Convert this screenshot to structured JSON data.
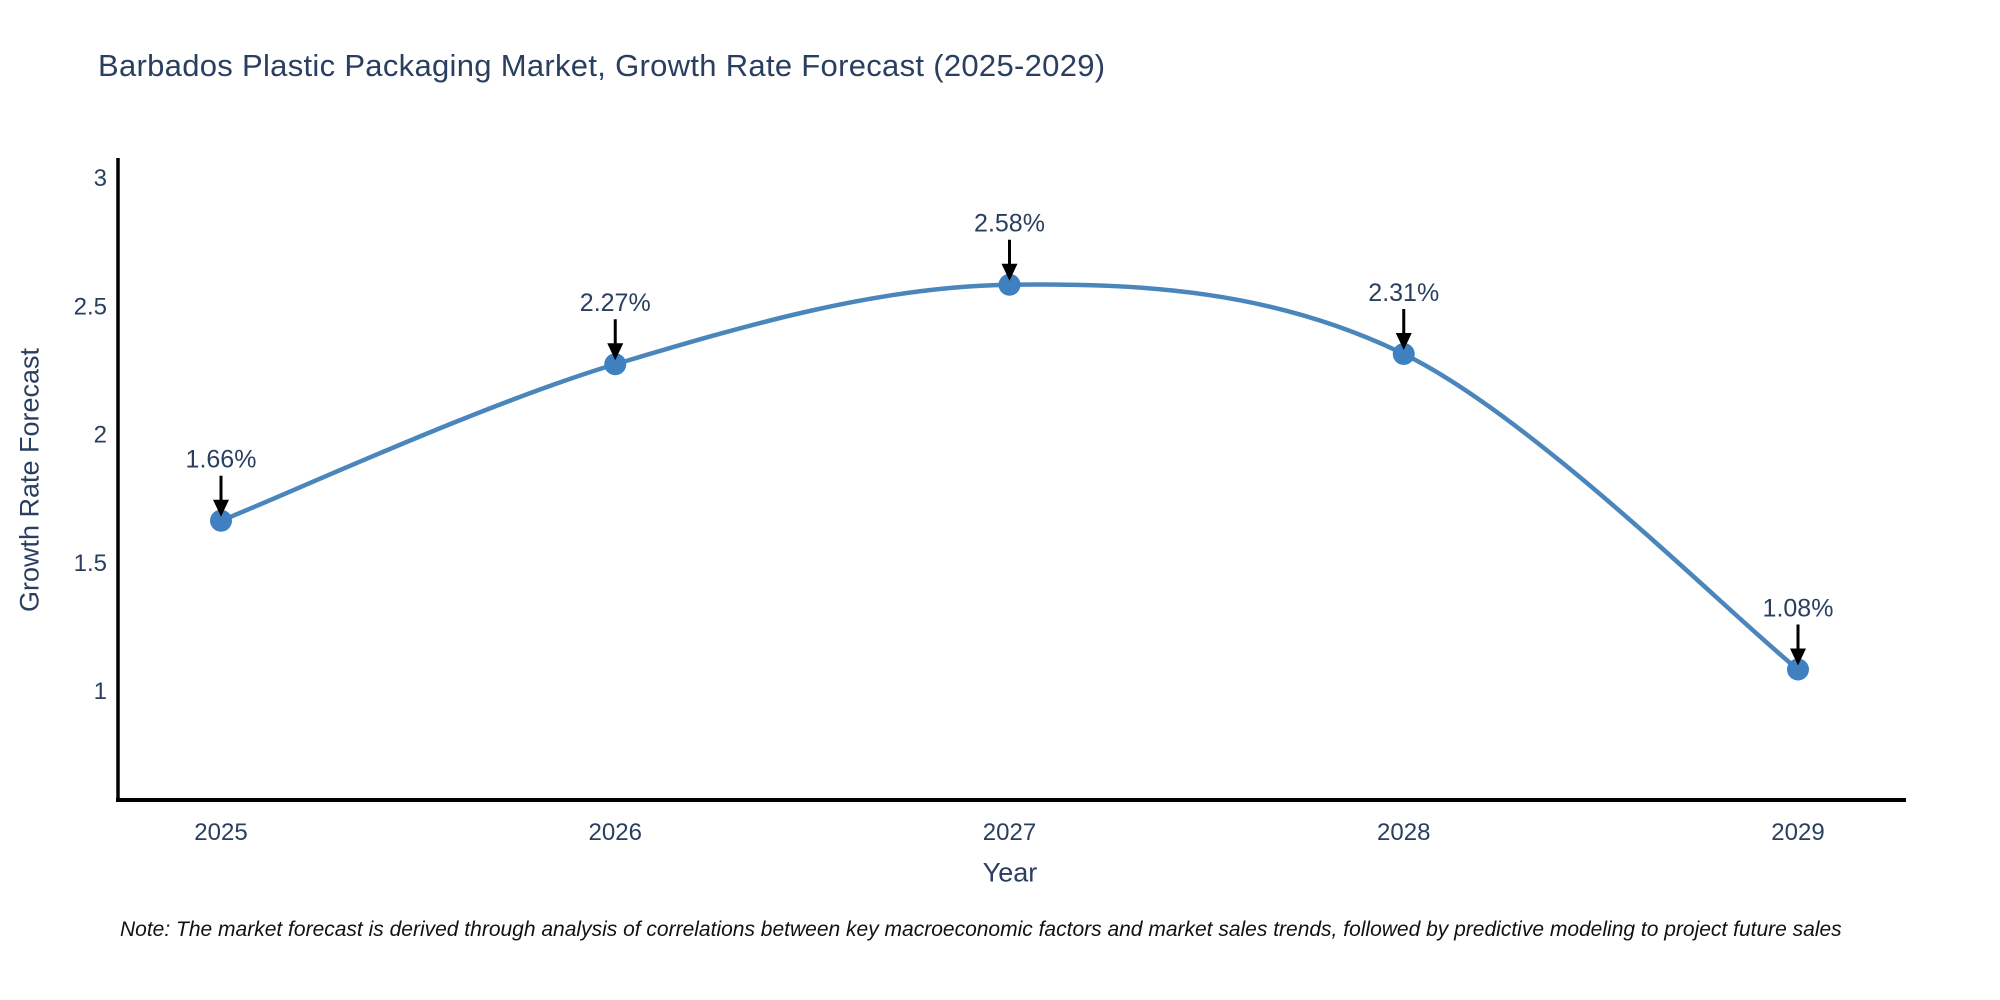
{
  "title": "Barbados Plastic Packaging Market, Growth Rate Forecast (2025-2029)",
  "footnote": "Note: The market forecast is derived through analysis of correlations between key macroeconomic factors and market sales trends, followed by predictive modeling to project future sales",
  "chart_data": {
    "type": "line",
    "line_shape": "spline",
    "categories": [
      "2025",
      "2026",
      "2027",
      "2028",
      "2029"
    ],
    "values": [
      1.66,
      2.27,
      2.58,
      2.31,
      1.08
    ],
    "point_labels": [
      "1.66%",
      "2.27%",
      "2.58%",
      "2.31%",
      "1.08%"
    ],
    "title": "Barbados Plastic Packaging Market, Growth Rate Forecast (2025-2029)",
    "xlabel": "Year",
    "ylabel": "Growth Rate Forecast",
    "yticks": [
      3,
      2.5,
      2,
      1.5,
      1
    ],
    "ytick_labels": [
      "3",
      "2.5",
      "2",
      "1.5",
      "1"
    ],
    "ylim": [
      0.57,
      3.07
    ],
    "grid": false,
    "legend": false,
    "colors": {
      "line": "#4a86bc",
      "marker": "#3f80c1",
      "axis": "#000000",
      "annotation_arrow": "#000000",
      "chart_text": "#2a3f5f"
    }
  }
}
